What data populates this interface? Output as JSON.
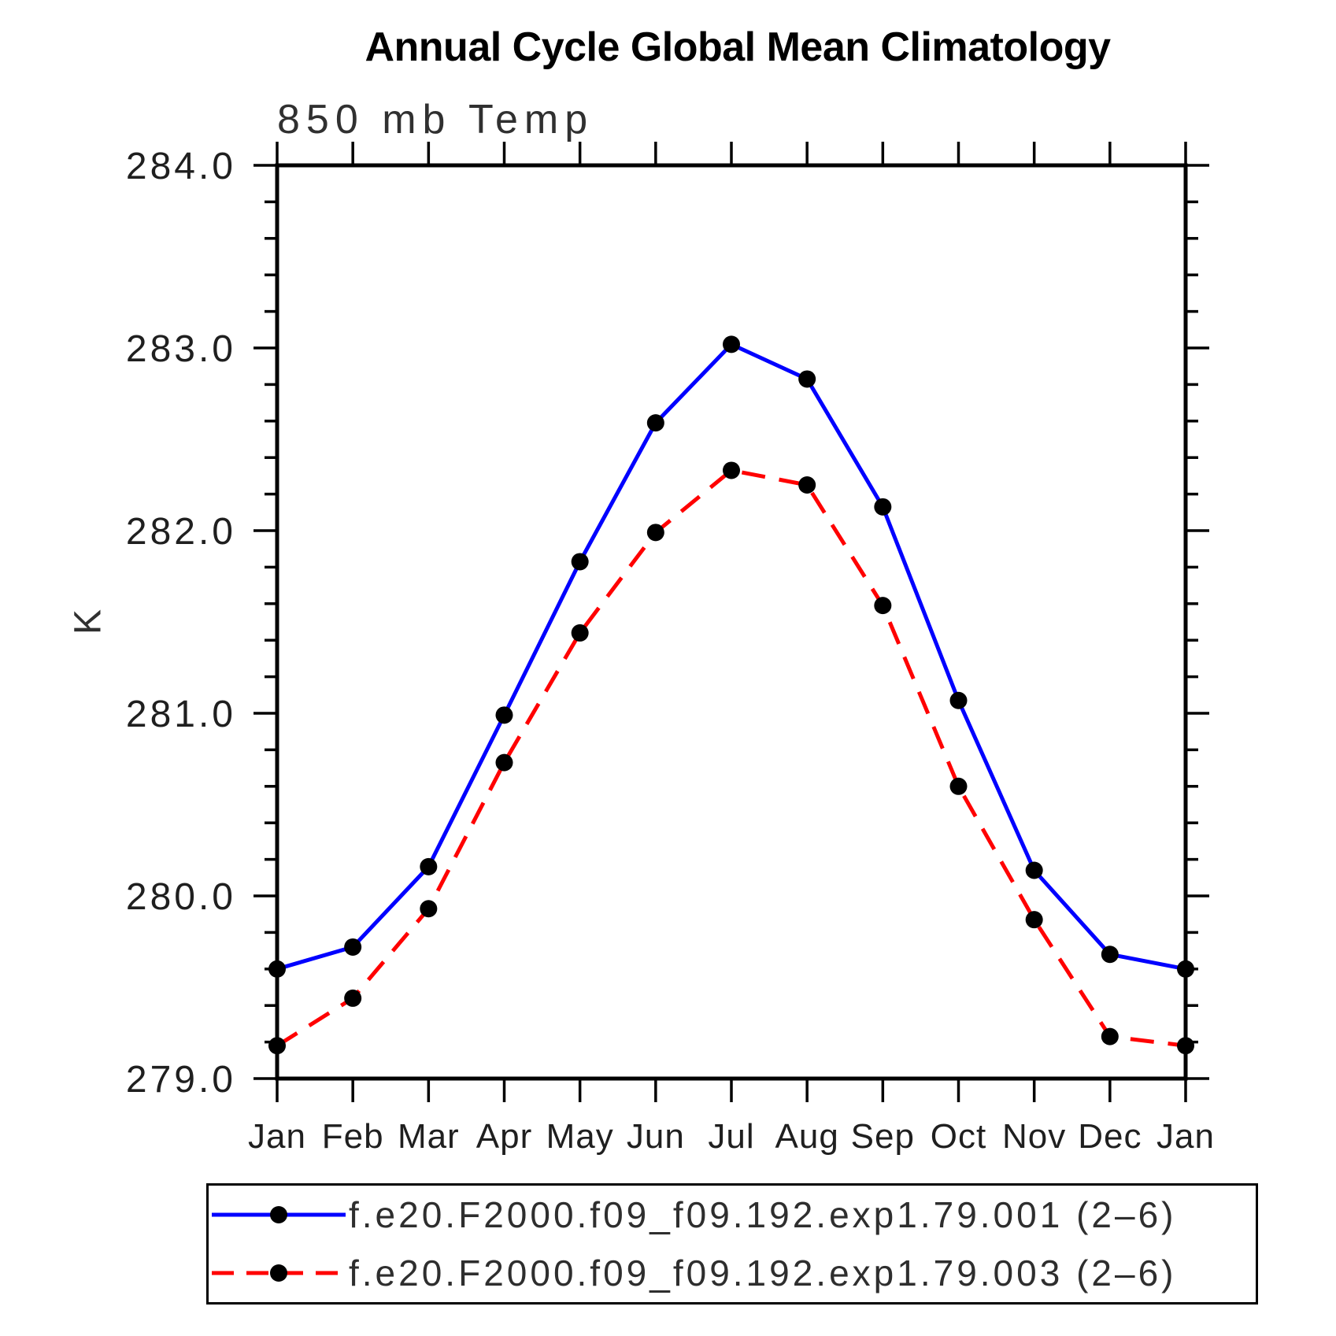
{
  "chart_data": {
    "type": "line",
    "title": "Annual Cycle Global Mean Climatology",
    "subtitle": "850 mb Temp",
    "ylabel": "K",
    "xlabel": "",
    "ylim": [
      279.0,
      284.0
    ],
    "ytick_labels": [
      "279.0",
      "280.0",
      "281.0",
      "282.0",
      "283.0",
      "284.0"
    ],
    "y_minor_step": 0.2,
    "grid": false,
    "legend_position": "bottom",
    "marker": {
      "shape": "circle",
      "color": "#000000"
    },
    "categories": [
      "Jan",
      "Feb",
      "Mar",
      "Apr",
      "May",
      "Jun",
      "Jul",
      "Aug",
      "Sep",
      "Oct",
      "Nov",
      "Dec",
      "Jan"
    ],
    "series": [
      {
        "name": "f.e20.F2000.f09_f09.192.exp1.79.001 (2–6)",
        "color": "#0000ff",
        "style": "solid",
        "values": [
          279.6,
          279.72,
          280.16,
          280.99,
          281.83,
          282.59,
          283.02,
          282.83,
          282.13,
          281.07,
          280.14,
          279.68,
          279.6
        ]
      },
      {
        "name": "f.e20.F2000.f09_f09.192.exp1.79.003 (2–6)",
        "color": "#ff0000",
        "style": "dashed",
        "values": [
          279.18,
          279.44,
          279.93,
          280.73,
          281.44,
          281.99,
          282.33,
          282.25,
          281.59,
          280.6,
          279.87,
          279.23,
          279.18
        ]
      }
    ]
  }
}
